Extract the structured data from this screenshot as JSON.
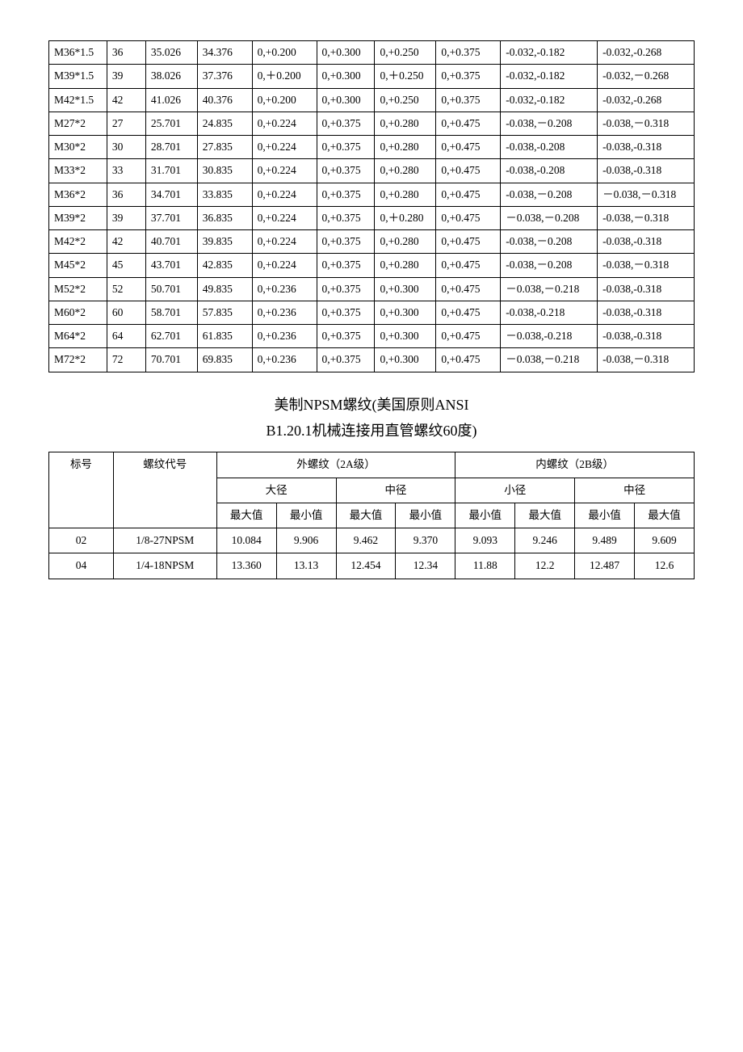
{
  "table1": {
    "col_widths": [
      "9%",
      "6%",
      "8%",
      "8.5%",
      "10%",
      "9%",
      "9.5%",
      "10%",
      "15%",
      "15%"
    ],
    "rows": [
      [
        "M36*1.5",
        "36",
        "35.026",
        "34.376",
        "0,+0.200",
        "0,+0.300",
        "0,+0.250",
        "0,+0.375",
        "-0.032,-0.182",
        "-0.032,-0.268"
      ],
      [
        "M39*1.5",
        "39",
        "38.026",
        "37.376",
        "0,＋0.200",
        "0,+0.300",
        "0,＋0.250",
        "0,+0.375",
        "-0.032,-0.182",
        "-0.032,－0.268"
      ],
      [
        "M42*1.5",
        "42",
        "41.026",
        "40.376",
        "0,+0.200",
        "0,+0.300",
        "0,+0.250",
        "0,+0.375",
        "-0.032,-0.182",
        "-0.032,-0.268"
      ],
      [
        "M27*2",
        "27",
        "25.701",
        "24.835",
        "0,+0.224",
        "0,+0.375",
        "0,+0.280",
        "0,+0.475",
        "-0.038,－0.208",
        "-0.038,－0.318"
      ],
      [
        "M30*2",
        "30",
        "28.701",
        "27.835",
        "0,+0.224",
        "0,+0.375",
        "0,+0.280",
        "0,+0.475",
        "-0.038,-0.208",
        "-0.038,-0.318"
      ],
      [
        "M33*2",
        "33",
        "31.701",
        "30.835",
        "0,+0.224",
        "0,+0.375",
        "0,+0.280",
        "0,+0.475",
        "-0.038,-0.208",
        "-0.038,-0.318"
      ],
      [
        "M36*2",
        "36",
        "34.701",
        "33.835",
        "0,+0.224",
        "0,+0.375",
        "0,+0.280",
        "0,+0.475",
        "-0.038,－0.208",
        "－0.038,－0.318"
      ],
      [
        "M39*2",
        "39",
        "37.701",
        "36.835",
        "0,+0.224",
        "0,+0.375",
        "0,＋0.280",
        "0,+0.475",
        "－0.038,－0.208",
        "-0.038,－0.318"
      ],
      [
        "M42*2",
        "42",
        "40.701",
        "39.835",
        "0,+0.224",
        "0,+0.375",
        "0,+0.280",
        "0,+0.475",
        "-0.038,－0.208",
        "-0.038,-0.318"
      ],
      [
        "M45*2",
        "45",
        "43.701",
        "42.835",
        "0,+0.224",
        "0,+0.375",
        "0,+0.280",
        "0,+0.475",
        "-0.038,－0.208",
        "-0.038,－0.318"
      ],
      [
        "M52*2",
        "52",
        "50.701",
        "49.835",
        "0,+0.236",
        "0,+0.375",
        "0,+0.300",
        "0,+0.475",
        "－0.038,－0.218",
        "-0.038,-0.318"
      ],
      [
        "M60*2",
        "60",
        "58.701",
        "57.835",
        "0,+0.236",
        "0,+0.375",
        "0,+0.300",
        "0,+0.475",
        "-0.038,-0.218",
        "-0.038,-0.318"
      ],
      [
        "M64*2",
        "64",
        "62.701",
        "61.835",
        "0,+0.236",
        "0,+0.375",
        "0,+0.300",
        "0,+0.475",
        "－0.038,-0.218",
        "-0.038,-0.318"
      ],
      [
        "M72*2",
        "72",
        "70.701",
        "69.835",
        "0,+0.236",
        "0,+0.375",
        "0,+0.300",
        "0,+0.475",
        "－0.038,－0.218",
        "-0.038,－0.318"
      ]
    ]
  },
  "title_line1": "美制NPSM螺纹(美国原则ANSI",
  "title_line2": "B1.20.1机械连接用直管螺纹60度)",
  "table2": {
    "headers": {
      "h1": "标号",
      "h2": "螺纹代号",
      "h3": "外螺纹（2A级）",
      "h4": "内螺纹（2B级）",
      "sub1": "大径",
      "sub2": "中径",
      "sub3": "小径",
      "sub4": "中径",
      "max": "最大值",
      "min": "最小值"
    },
    "rows": [
      [
        "02",
        "1/8-27NPSM",
        "10.084",
        "9.906",
        "9.462",
        "9.370",
        "9.093",
        "9.246",
        "9.489",
        "9.609"
      ],
      [
        "04",
        "1/4-18NPSM",
        "13.360",
        "13.13",
        "12.454",
        "12.34",
        "11.88",
        "12.2",
        "12.487",
        "12.6"
      ]
    ]
  }
}
